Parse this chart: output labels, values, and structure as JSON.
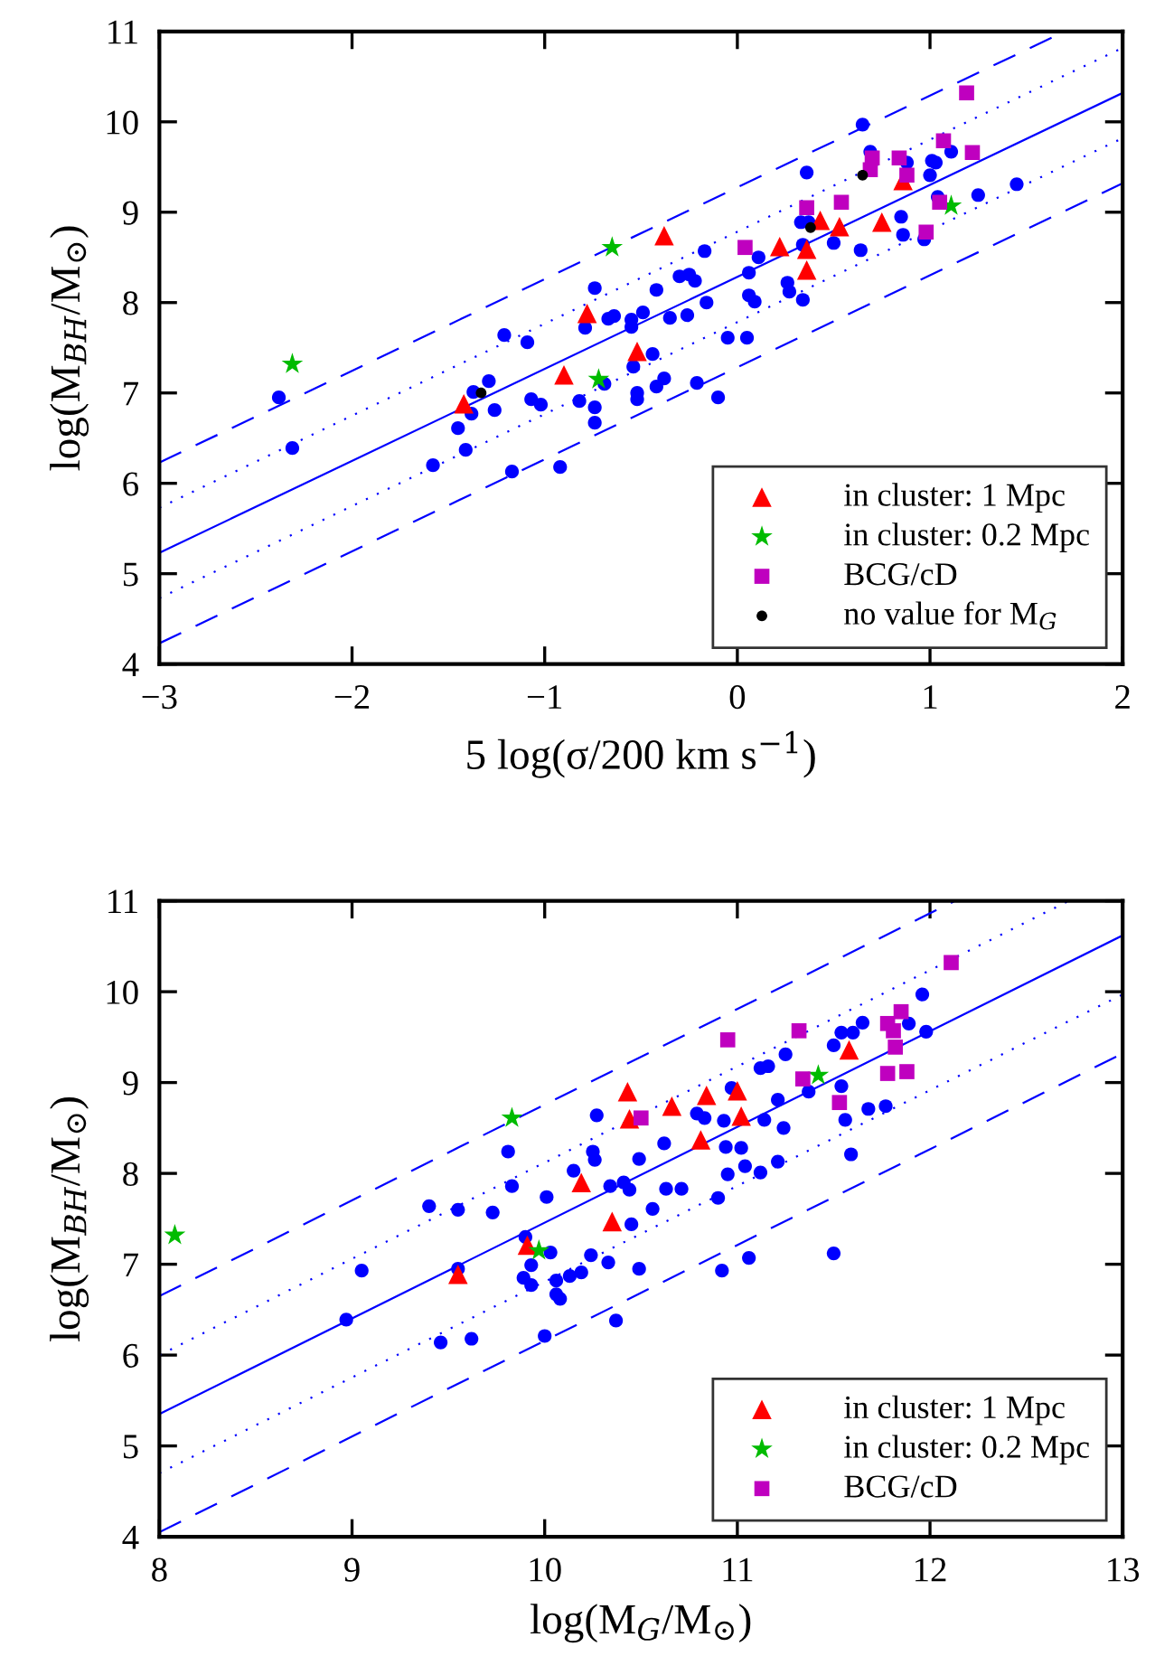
{
  "chart_data": [
    {
      "type": "scatter",
      "xlabel": "5 log(σ/200 km s$^{−1}$)",
      "ylabel": "log(M$_{BH}$/M$_{⊙}$)",
      "xlim": [
        -3,
        2
      ],
      "ylim": [
        4,
        11
      ],
      "xticks": [
        {
          "value": -3,
          "label": "−3"
        },
        {
          "value": -2,
          "label": "−2"
        },
        {
          "value": -1,
          "label": "−1"
        },
        0,
        1,
        2
      ],
      "yticks": [
        4,
        5,
        6,
        7,
        8,
        9,
        10,
        11
      ],
      "grid": false,
      "legend": "bottom right",
      "series": [
        {
          "type": "line",
          "color": "#0000ff",
          "line_style": "dashed",
          "x": [
            -3,
            1.7
          ],
          "values": [
            6.23,
            11.0
          ]
        },
        {
          "type": "line",
          "color": "#0000ff",
          "line_style": "dotted",
          "x": [
            -3,
            2
          ],
          "values": [
            5.73,
            10.82
          ]
        },
        {
          "type": "line",
          "color": "#0000ff",
          "line_style": "solid",
          "x": [
            -3,
            2
          ],
          "values": [
            5.23,
            10.32
          ]
        },
        {
          "type": "line",
          "color": "#0000ff",
          "line_style": "dotted",
          "x": [
            -3,
            2
          ],
          "values": [
            4.73,
            9.82
          ]
        },
        {
          "type": "line",
          "color": "#0000ff",
          "line_style": "dashed",
          "x": [
            -3,
            2
          ],
          "values": [
            4.23,
            9.32
          ]
        },
        {
          "color": "#0000ff",
          "marker": "circle",
          "x": [
            -2.38,
            -2.31,
            -1.21,
            -1.09,
            -1.29,
            -1.37,
            -1.38,
            -1.45,
            -1.41,
            -1.26,
            -1.58,
            -1.17,
            -1.07,
            -1.02,
            -0.92,
            -0.82,
            -0.74,
            -0.74,
            -0.74,
            -0.79,
            -0.67,
            -0.64,
            -0.55,
            -0.55,
            -0.49,
            -0.54,
            -0.52,
            -0.52,
            -0.42,
            -0.44,
            -0.42,
            -0.69,
            -0.38,
            -0.21,
            -0.1,
            -0.35,
            -0.26,
            -0.16,
            -0.3,
            -0.25,
            -0.22,
            -0.17,
            -0.05,
            0.05,
            0.06,
            0.09,
            0.06,
            0.11,
            0.26,
            0.27,
            0.34,
            0.34,
            0.33,
            0.37,
            0.36,
            0.5,
            0.64,
            0.65,
            0.69,
            0.85,
            0.86,
            0.88,
            0.97,
            1.0,
            1.01,
            1.03,
            1.04,
            1.11,
            1.25,
            1.45
          ],
          "values": [
            6.95,
            6.39,
            7.64,
            7.56,
            7.13,
            7.01,
            6.77,
            6.61,
            6.37,
            6.81,
            6.2,
            6.13,
            6.93,
            6.87,
            6.18,
            6.91,
            6.84,
            6.67,
            8.16,
            7.72,
            7.82,
            7.85,
            7.81,
            7.73,
            7.89,
            7.29,
            7.0,
            6.93,
            8.14,
            7.43,
            7.07,
            7.1,
            7.16,
            7.11,
            6.95,
            7.83,
            7.86,
            8.0,
            8.29,
            8.31,
            8.24,
            8.57,
            7.61,
            7.61,
            8.08,
            8.01,
            8.33,
            8.5,
            8.22,
            8.12,
            8.03,
            8.64,
            8.89,
            8.89,
            9.44,
            8.66,
            8.58,
            9.97,
            9.67,
            8.95,
            8.75,
            9.55,
            8.7,
            9.41,
            9.57,
            9.55,
            9.17,
            9.67,
            9.19,
            9.31
          ]
        },
        {
          "name": "in cluster: 1 Mpc",
          "color": "#ff0000",
          "marker": "triangle",
          "x": [
            -1.42,
            -0.9,
            -0.78,
            -0.52,
            -0.38,
            0.22,
            0.43,
            0.53,
            0.36,
            0.36,
            0.75,
            0.86
          ],
          "values": [
            6.88,
            7.2,
            7.88,
            7.46,
            8.74,
            8.62,
            8.91,
            8.84,
            8.59,
            8.36,
            8.89,
            9.35
          ]
        },
        {
          "name": "in cluster: 0.2 Mpc",
          "color": "#00bb00",
          "marker": "star",
          "x": [
            -2.31,
            -0.65,
            -0.72,
            1.11
          ],
          "values": [
            7.32,
            8.61,
            7.15,
            9.07
          ]
        },
        {
          "name": "BCG/cD",
          "color": "#bf00bf",
          "marker": "square",
          "x": [
            0.04,
            0.36,
            0.54,
            0.7,
            0.69,
            0.84,
            0.88,
            1.07,
            1.22,
            1.19,
            0.98,
            1.05
          ],
          "values": [
            8.61,
            9.05,
            9.11,
            9.6,
            9.47,
            9.6,
            9.41,
            9.79,
            9.66,
            10.32,
            8.78,
            9.11
          ]
        },
        {
          "name": "no value for M$_{G}$",
          "color": "#000000",
          "marker": "circle",
          "x": [
            -1.33,
            0.38,
            0.65
          ],
          "values": [
            7.0,
            8.83,
            9.41
          ]
        }
      ]
    },
    {
      "type": "scatter",
      "xlabel": "log(M$_{G}$/M$_{⊙}$)",
      "ylabel": "log(M$_{BH}$/M$_{⊙}$)",
      "xlim": [
        8,
        13
      ],
      "ylim": [
        4,
        11
      ],
      "xticks": [
        8,
        9,
        10,
        11,
        12,
        13
      ],
      "yticks": [
        4,
        5,
        6,
        7,
        8,
        9,
        10,
        11
      ],
      "grid": false,
      "legend": "bottom right",
      "series": [
        {
          "type": "line",
          "color": "#0000ff",
          "line_style": "dashed",
          "x": [
            8,
            12.13
          ],
          "values": [
            6.65,
            11.0
          ]
        },
        {
          "type": "line",
          "color": "#0000ff",
          "line_style": "dotted",
          "x": [
            8,
            12.72
          ],
          "values": [
            6.0,
            11.0
          ]
        },
        {
          "type": "line",
          "color": "#0000ff",
          "line_style": "solid",
          "x": [
            8,
            13
          ],
          "values": [
            5.35,
            10.62
          ]
        },
        {
          "type": "line",
          "color": "#0000ff",
          "line_style": "dotted",
          "x": [
            8,
            13
          ],
          "values": [
            4.7,
            9.97
          ]
        },
        {
          "type": "line",
          "color": "#0000ff",
          "line_style": "dashed",
          "x": [
            8,
            13
          ],
          "values": [
            4.05,
            9.32
          ]
        },
        {
          "color": "#0000ff",
          "marker": "circle",
          "x": [
            9.05,
            8.97,
            9.4,
            9.55,
            9.73,
            9.81,
            9.83,
            9.55,
            9.46,
            9.62,
            9.9,
            9.93,
            9.89,
            9.93,
            10.0,
            10.01,
            10.03,
            10.06,
            10.06,
            10.08,
            10.13,
            10.19,
            10.15,
            10.24,
            10.25,
            10.26,
            10.27,
            10.33,
            10.37,
            10.34,
            10.41,
            10.44,
            10.45,
            10.49,
            10.49,
            10.56,
            10.62,
            10.63,
            10.71,
            10.79,
            10.83,
            10.93,
            10.97,
            10.94,
            11.02,
            10.95,
            11.04,
            11.12,
            10.9,
            10.92,
            11.06,
            11.14,
            11.21,
            11.21,
            11.24,
            11.12,
            11.16,
            11.25,
            11.37,
            11.5,
            11.5,
            11.54,
            11.6,
            11.65,
            11.54,
            11.56,
            11.59,
            11.68,
            11.77,
            11.89,
            11.96,
            11.98
          ],
          "values": [
            6.93,
            6.39,
            7.64,
            7.6,
            7.57,
            8.24,
            7.86,
            6.95,
            6.14,
            6.18,
            7.3,
            6.99,
            6.85,
            6.77,
            6.21,
            7.74,
            7.13,
            6.82,
            6.67,
            6.62,
            6.87,
            6.91,
            8.03,
            7.1,
            8.24,
            8.15,
            8.64,
            7.02,
            6.38,
            7.86,
            7.9,
            7.82,
            7.44,
            8.16,
            6.95,
            7.61,
            8.33,
            7.83,
            7.83,
            8.66,
            8.61,
            8.58,
            8.94,
            8.29,
            8.28,
            7.99,
            8.08,
            8.01,
            7.73,
            6.93,
            7.07,
            8.59,
            8.13,
            8.81,
            8.5,
            9.16,
            9.18,
            9.31,
            8.9,
            7.12,
            9.41,
            9.55,
            9.55,
            9.66,
            8.96,
            8.59,
            8.21,
            8.71,
            8.74,
            9.65,
            9.97,
            9.56
          ]
        },
        {
          "name": "in cluster: 1 Mpc",
          "color": "#ff0000",
          "marker": "triangle",
          "x": [
            9.55,
            9.91,
            10.19,
            10.35,
            10.43,
            10.44,
            10.66,
            10.84,
            11.0,
            11.02,
            10.81,
            11.58
          ],
          "values": [
            6.89,
            7.21,
            7.9,
            7.47,
            8.9,
            8.6,
            8.74,
            8.86,
            8.91,
            8.63,
            8.37,
            9.36
          ]
        },
        {
          "name": "in cluster: 0.2 Mpc",
          "color": "#00bb00",
          "marker": "star",
          "x": [
            8.08,
            9.83,
            9.97,
            11.42
          ],
          "values": [
            7.32,
            8.61,
            7.15,
            9.08
          ]
        },
        {
          "name": "BCG/cD",
          "color": "#bf00bf",
          "marker": "square",
          "x": [
            10.5,
            10.95,
            11.32,
            11.34,
            11.53,
            11.78,
            11.81,
            11.85,
            11.82,
            11.78,
            11.88,
            12.11
          ],
          "values": [
            8.61,
            9.47,
            9.57,
            9.04,
            8.78,
            9.65,
            9.57,
            9.78,
            9.39,
            9.1,
            9.12,
            10.32
          ]
        }
      ]
    }
  ]
}
